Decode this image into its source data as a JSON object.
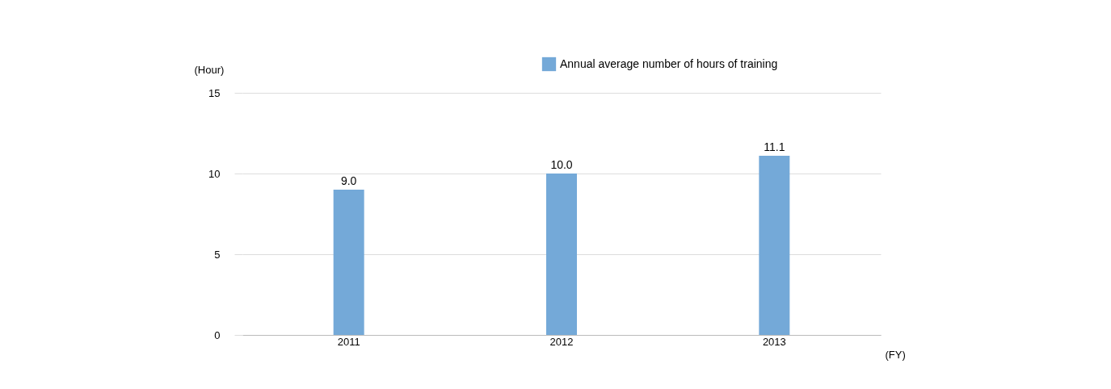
{
  "chart_data": {
    "type": "bar",
    "xlabel": "(FY)",
    "ylabel": "(Hour)",
    "categories": [
      "2011",
      "2012",
      "2013"
    ],
    "series": [
      {
        "name": "Annual average number of hours of training",
        "color": "#74a9d8",
        "values": [
          9.0,
          10.0,
          11.1
        ],
        "value_labels": [
          "9.0",
          "10.0",
          "11.1"
        ]
      }
    ],
    "ylim": [
      0,
      15
    ],
    "yticks": [
      0,
      5,
      10,
      15
    ],
    "grid": "y",
    "legend": "top right"
  }
}
